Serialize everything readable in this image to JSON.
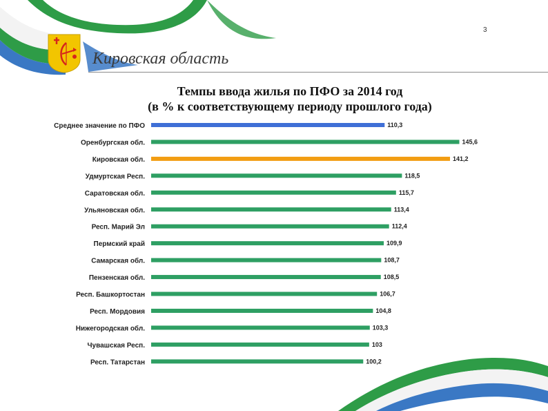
{
  "slide": {
    "page_number": "3",
    "region_title": "Кировская область",
    "emblem_icon": "kirov-coat-of-arms-icon",
    "ribbon_colors": [
      "#ffffff",
      "#2e9c47",
      "#3a78c4"
    ]
  },
  "chart_data": {
    "type": "bar",
    "orientation": "horizontal",
    "title": "Темпы ввода жилья по ПФО за 2014 год",
    "subtitle": "(в % к соответствующему периоду прошлого года)",
    "categories": [
      "Среднее значение по ПФО",
      "Оренбургская обл.",
      "Кировская обл.",
      "Удмуртская Респ.",
      "Саратовская обл.",
      "Ульяновская обл.",
      "Респ. Марий Эл",
      "Пермский край",
      "Самарская обл.",
      "Пензенская обл.",
      "Респ. Башкортостан",
      "Респ. Мордовия",
      "Нижегородская обл.",
      "Чувашская Респ.",
      "Респ. Татарстан"
    ],
    "values": [
      110.3,
      145.6,
      141.2,
      118.5,
      115.7,
      113.4,
      112.4,
      109.9,
      108.7,
      108.5,
      106.7,
      104.8,
      103.3,
      103,
      100.2
    ],
    "value_labels": [
      "110,3",
      "145,6",
      "141,2",
      "118,5",
      "115,7",
      "113,4",
      "112,4",
      "109,9",
      "108,7",
      "108,5",
      "106,7",
      "104,8",
      "103,3",
      "103",
      "100,2"
    ],
    "bar_colors": [
      "#3f6fd6",
      "#2e9f63",
      "#f29d12",
      "#2e9f63",
      "#2e9f63",
      "#2e9f63",
      "#2e9f63",
      "#2e9f63",
      "#2e9f63",
      "#2e9f63",
      "#2e9f63",
      "#2e9f63",
      "#2e9f63",
      "#2e9f63",
      "#2e9f63"
    ],
    "xlim": [
      0,
      150
    ],
    "grid": false,
    "legend": "none"
  }
}
